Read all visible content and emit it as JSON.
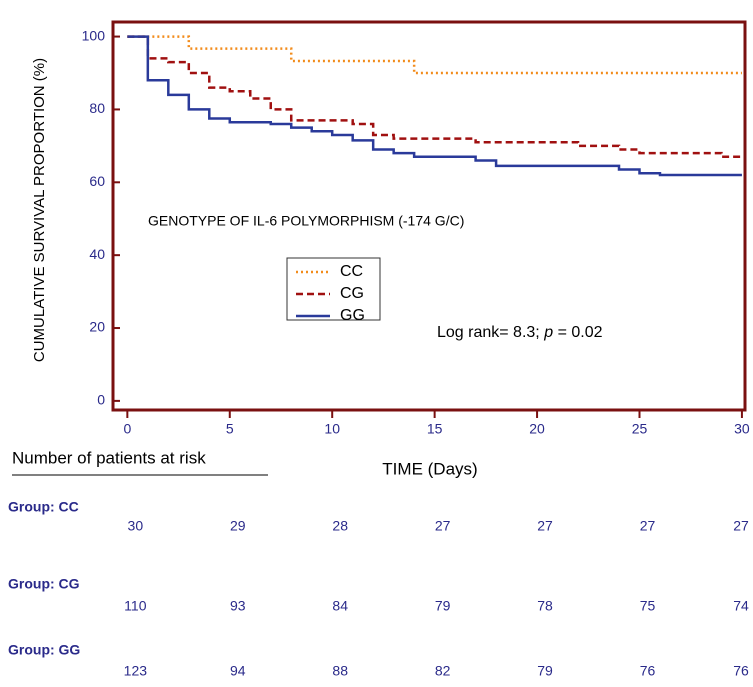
{
  "chart_data": {
    "type": "step",
    "y_label": "CUMULATIVE SURVIVAL PROPORTION (%)",
    "x_label": "TIME (Days)",
    "annotation": "GENOTYPE OF IL-6 POLYMORPHISM (-174 G/C)",
    "log_rank": {
      "prefix": "Log rank= 8.3;",
      "p": "p",
      "value": "= 0.02"
    },
    "xlim": [
      -0.7,
      30.15
    ],
    "ylim": [
      -2.5,
      104
    ],
    "xticks": [
      0,
      5,
      10,
      15,
      20,
      25,
      30
    ],
    "yticks": [
      0,
      20,
      40,
      60,
      80,
      100
    ],
    "frame_color": "#7a1010",
    "series": [
      {
        "name": "CC",
        "color": "#f28c1c",
        "style": "dotted",
        "x": [
          0,
          3,
          8,
          14,
          30
        ],
        "values": [
          100,
          96.7,
          93.3,
          90,
          90
        ]
      },
      {
        "name": "CG",
        "color": "#a01010",
        "style": "dashed",
        "x": [
          0,
          1,
          2,
          3,
          4,
          5,
          6,
          7,
          8,
          11,
          12,
          13,
          17,
          22,
          24,
          25,
          29,
          30
        ],
        "values": [
          100,
          94,
          93,
          90,
          86,
          85,
          83,
          80,
          77,
          76,
          73,
          72,
          71,
          70,
          69,
          68,
          67,
          67
        ]
      },
      {
        "name": "GG",
        "color": "#2a3a9a",
        "style": "solid",
        "x": [
          0,
          1,
          2,
          3,
          4,
          5,
          7,
          8,
          9,
          10,
          11,
          12,
          13,
          14,
          17,
          18,
          24,
          25,
          26,
          30
        ],
        "values": [
          100,
          88,
          84,
          80,
          77.5,
          76.5,
          76,
          75,
          74,
          73,
          71.5,
          69,
          68,
          67,
          66,
          64.5,
          63.5,
          62.5,
          62,
          62
        ]
      }
    ],
    "risk_table": {
      "title": "Number of patients at risk",
      "groups": [
        {
          "label": "Group: CC",
          "counts": [
            "30",
            "29",
            "28",
            "27",
            "27",
            "27",
            "27"
          ]
        },
        {
          "label": "Group: CG",
          "counts": [
            "110",
            "93",
            "84",
            "79",
            "78",
            "75",
            "74"
          ]
        },
        {
          "label": "Group: GG",
          "counts": [
            "123",
            "94",
            "88",
            "82",
            "79",
            "76",
            "76"
          ]
        }
      ]
    }
  }
}
